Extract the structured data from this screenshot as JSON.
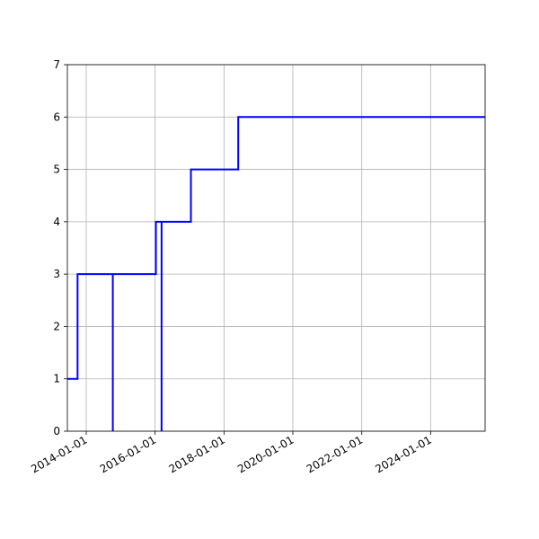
{
  "chart_data": {
    "type": "line",
    "title": "",
    "xlabel": "",
    "ylabel": "",
    "x_axis": "date",
    "xlim": [
      "2013-06-15",
      "2025-08-01"
    ],
    "ylim": [
      0,
      7
    ],
    "grid": true,
    "x_ticks": [
      "2014-01-01",
      "2016-01-01",
      "2018-01-01",
      "2020-01-01",
      "2022-01-01",
      "2024-01-01"
    ],
    "y_ticks": [
      0,
      1,
      2,
      3,
      4,
      5,
      6,
      7
    ],
    "series": [
      {
        "color": "#0000ff",
        "points": [
          {
            "x": "2013-06-15",
            "y": 1
          },
          {
            "x": "2013-10-01",
            "y": 1
          },
          {
            "x": "2013-10-01",
            "y": 3
          },
          {
            "x": "2014-10-10",
            "y": 3
          },
          {
            "x": "2014-10-10",
            "y": 0
          },
          {
            "x": "2014-10-10",
            "y": 3
          },
          {
            "x": "2016-01-10",
            "y": 3
          },
          {
            "x": "2016-01-10",
            "y": 4
          },
          {
            "x": "2016-03-10",
            "y": 4
          },
          {
            "x": "2016-03-10",
            "y": 0
          },
          {
            "x": "2016-03-10",
            "y": 4
          },
          {
            "x": "2017-01-15",
            "y": 4
          },
          {
            "x": "2017-01-15",
            "y": 5
          },
          {
            "x": "2018-06-01",
            "y": 5
          },
          {
            "x": "2018-06-01",
            "y": 6
          },
          {
            "x": "2025-08-01",
            "y": 6
          }
        ]
      }
    ]
  }
}
